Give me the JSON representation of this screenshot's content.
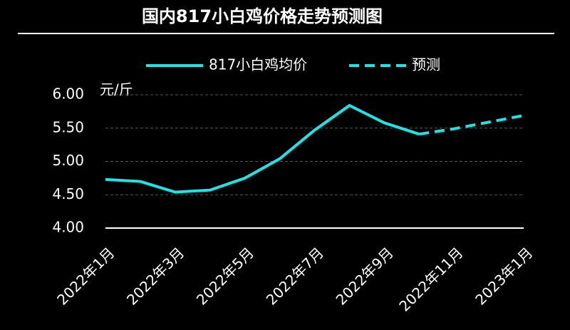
{
  "chart_data": {
    "type": "line",
    "title": "国内817小白鸡价格走势预测图",
    "y_unit": "元/斤",
    "categories": [
      "2022年1月",
      null,
      "2022年3月",
      null,
      "2022年5月",
      null,
      "2022年7月",
      null,
      "2022年9月",
      null,
      "2022年11月",
      null,
      "2023年1月"
    ],
    "series": [
      {
        "name": "817小白鸡均价",
        "color": "#19e6e6",
        "style": "solid",
        "values": [
          4.73,
          4.7,
          4.54,
          4.57,
          4.75,
          5.04,
          5.47,
          5.84,
          5.58,
          5.41,
          null,
          null,
          null
        ]
      },
      {
        "name": "预测",
        "color": "#19e6e6",
        "style": "dashed",
        "values": [
          null,
          null,
          null,
          null,
          null,
          null,
          null,
          null,
          null,
          5.41,
          5.49,
          5.59,
          5.69
        ]
      }
    ],
    "ylim": [
      4,
      6
    ],
    "yticks": [
      {
        "value": 4,
        "label": "4.00"
      },
      {
        "value": 4.5,
        "label": "4.50"
      },
      {
        "value": 5,
        "label": "5.00"
      },
      {
        "value": 5.5,
        "label": "5.50"
      },
      {
        "value": 6,
        "label": "6.00"
      }
    ],
    "grid": true
  }
}
